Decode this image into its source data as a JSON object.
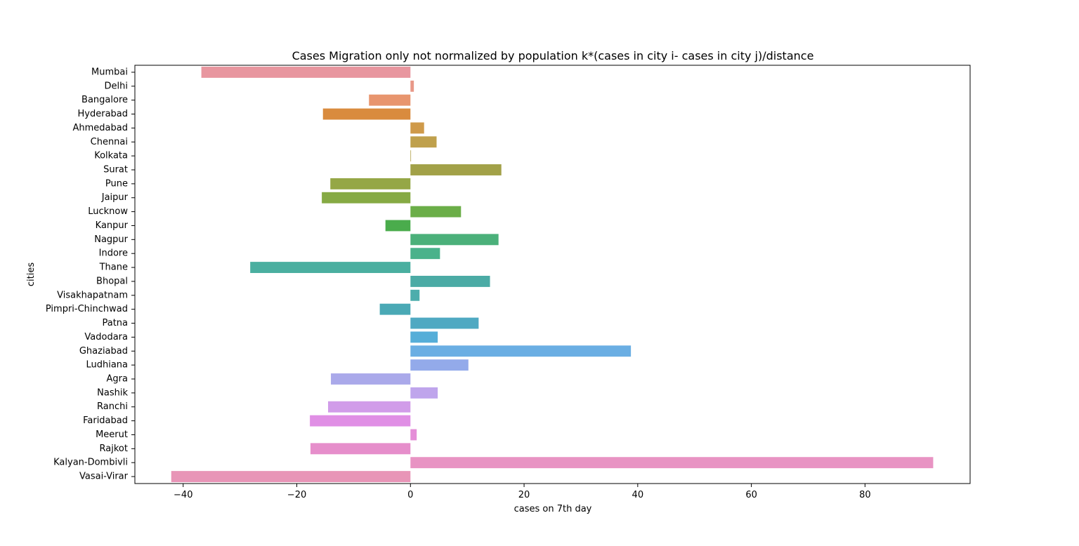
{
  "chart_data": {
    "type": "bar",
    "orientation": "horizontal",
    "title": "Cases Migration only not normalized by population k*(cases in city i- cases in city j)/distance",
    "xlabel": "cases on 7th day",
    "ylabel": "cities",
    "xlim": [
      -48.5,
      98.5
    ],
    "xticks": [
      -40,
      -20,
      0,
      20,
      40,
      60,
      80
    ],
    "xtick_labels": [
      "−40",
      "−20",
      "0",
      "20",
      "40",
      "60",
      "80"
    ],
    "grid": false,
    "legend": "none",
    "categories": [
      "Mumbai",
      "Delhi",
      "Bangalore",
      "Hyderabad",
      "Ahmedabad",
      "Chennai",
      "Kolkata",
      "Surat",
      "Pune",
      "Jaipur",
      "Lucknow",
      "Kanpur",
      "Nagpur",
      "Indore",
      "Thane",
      "Bhopal",
      "Visakhapatnam",
      "Pimpri-Chinchwad",
      "Patna",
      "Vadodara",
      "Ghaziabad",
      "Ludhiana",
      "Agra",
      "Nashik",
      "Ranchi",
      "Faridabad",
      "Meerut",
      "Rajkot",
      "Kalyan-Dombivli",
      "Vasai-Virar"
    ],
    "values": [
      -36.8,
      0.6,
      -7.3,
      -15.4,
      2.4,
      4.6,
      0.1,
      16.0,
      -14.1,
      -15.6,
      8.9,
      -4.4,
      15.5,
      5.2,
      -28.2,
      14.0,
      1.6,
      -5.4,
      12.0,
      4.8,
      38.8,
      10.2,
      -14.0,
      4.8,
      -14.5,
      -17.7,
      1.1,
      -17.6,
      92.0,
      -42.1
    ],
    "colors": [
      "#e8969f",
      "#e89888",
      "#e8956e",
      "#d98b3e",
      "#cf9a4a",
      "#bfa04c",
      "#b1a14a",
      "#a2a148",
      "#95a746",
      "#86aa44",
      "#6bae48",
      "#4aac4c",
      "#4bb07a",
      "#4ab28b",
      "#4aafa0",
      "#4baba5",
      "#4dadac",
      "#4aa9b5",
      "#4fa9c2",
      "#56aed8",
      "#6aaee3",
      "#93aaea",
      "#aaa9ea",
      "#bfa5ec",
      "#d19ce9",
      "#e08fe5",
      "#e58ed8",
      "#e68ecb",
      "#e893c3",
      "#e895b7"
    ]
  }
}
